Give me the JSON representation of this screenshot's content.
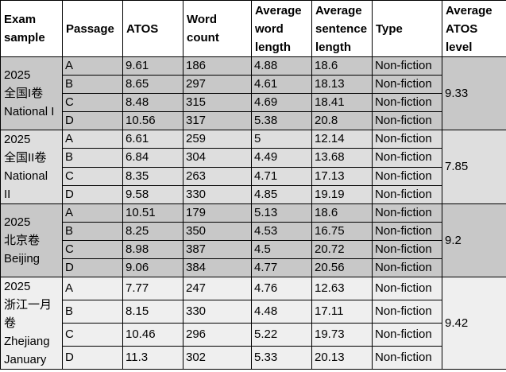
{
  "headers": [
    "Exam sample",
    "Passage",
    "ATOS",
    "Word count",
    "Average word length",
    "Average sentence length",
    "Type",
    "Average ATOS level"
  ],
  "groups": [
    {
      "exam_lines": [
        "2025",
        "全国I卷",
        "National I"
      ],
      "level": "9.33",
      "rows": [
        {
          "passage": "A",
          "atos": "9.61",
          "word_count": "186",
          "avg_word_len": "4.88",
          "avg_sent_len": "18.6",
          "type": "Non-fiction"
        },
        {
          "passage": "B",
          "atos": "8.65",
          "word_count": "297",
          "avg_word_len": "4.61",
          "avg_sent_len": "18.13",
          "type": "Non-fiction"
        },
        {
          "passage": "C",
          "atos": "8.48",
          "word_count": "315",
          "avg_word_len": "4.69",
          "avg_sent_len": "18.41",
          "type": "Non-fiction"
        },
        {
          "passage": "D",
          "atos": "10.56",
          "word_count": "317",
          "avg_word_len": "5.38",
          "avg_sent_len": "20.8",
          "type": "Non-fiction"
        }
      ]
    },
    {
      "exam_lines": [
        "2025",
        "全国II卷",
        "National",
        "II"
      ],
      "level": "7.85",
      "rows": [
        {
          "passage": "A",
          "atos": "6.61",
          "word_count": "259",
          "avg_word_len": "5",
          "avg_sent_len": "12.14",
          "type": "Non-fiction"
        },
        {
          "passage": "B",
          "atos": "6.84",
          "word_count": "304",
          "avg_word_len": "4.49",
          "avg_sent_len": "13.68",
          "type": "Non-fiction"
        },
        {
          "passage": "C",
          "atos": "8.35",
          "word_count": "263",
          "avg_word_len": "4.71",
          "avg_sent_len": "17.13",
          "type": "Non-fiction"
        },
        {
          "passage": "D",
          "atos": "9.58",
          "word_count": "330",
          "avg_word_len": "4.85",
          "avg_sent_len": "19.19",
          "type": "Non-fiction"
        }
      ]
    },
    {
      "exam_lines": [
        "2025",
        "北京卷",
        "Beijing"
      ],
      "level": "9.2",
      "rows": [
        {
          "passage": "A",
          "atos": "10.51",
          "word_count": "179",
          "avg_word_len": "5.13",
          "avg_sent_len": "18.6",
          "type": "Non-fiction"
        },
        {
          "passage": "B",
          "atos": "8.25",
          "word_count": "350",
          "avg_word_len": "4.53",
          "avg_sent_len": "16.75",
          "type": "Non-fiction"
        },
        {
          "passage": "C",
          "atos": "8.98",
          "word_count": "387",
          "avg_word_len": "4.5",
          "avg_sent_len": "20.72",
          "type": "Non-fiction"
        },
        {
          "passage": "D",
          "atos": "9.06",
          "word_count": "384",
          "avg_word_len": "4.77",
          "avg_sent_len": "20.56",
          "type": "Non-fiction"
        }
      ]
    },
    {
      "exam_lines": [
        "2025",
        "浙江一月",
        "卷",
        "Zhejiang",
        "January"
      ],
      "level": "9.42",
      "rows": [
        {
          "passage": "A",
          "atos": "7.77",
          "word_count": "247",
          "avg_word_len": "4.76",
          "avg_sent_len": "12.63",
          "type": "Non-fiction"
        },
        {
          "passage": "B",
          "atos": "8.15",
          "word_count": "330",
          "avg_word_len": "4.48",
          "avg_sent_len": "17.11",
          "type": "Non-fiction"
        },
        {
          "passage": "C",
          "atos": "10.46",
          "word_count": "296",
          "avg_word_len": "5.22",
          "avg_sent_len": "19.73",
          "type": "Non-fiction"
        },
        {
          "passage": "D",
          "atos": "11.3",
          "word_count": "302",
          "avg_word_len": "5.33",
          "avg_sent_len": "20.13",
          "type": "Non-fiction"
        }
      ]
    }
  ]
}
